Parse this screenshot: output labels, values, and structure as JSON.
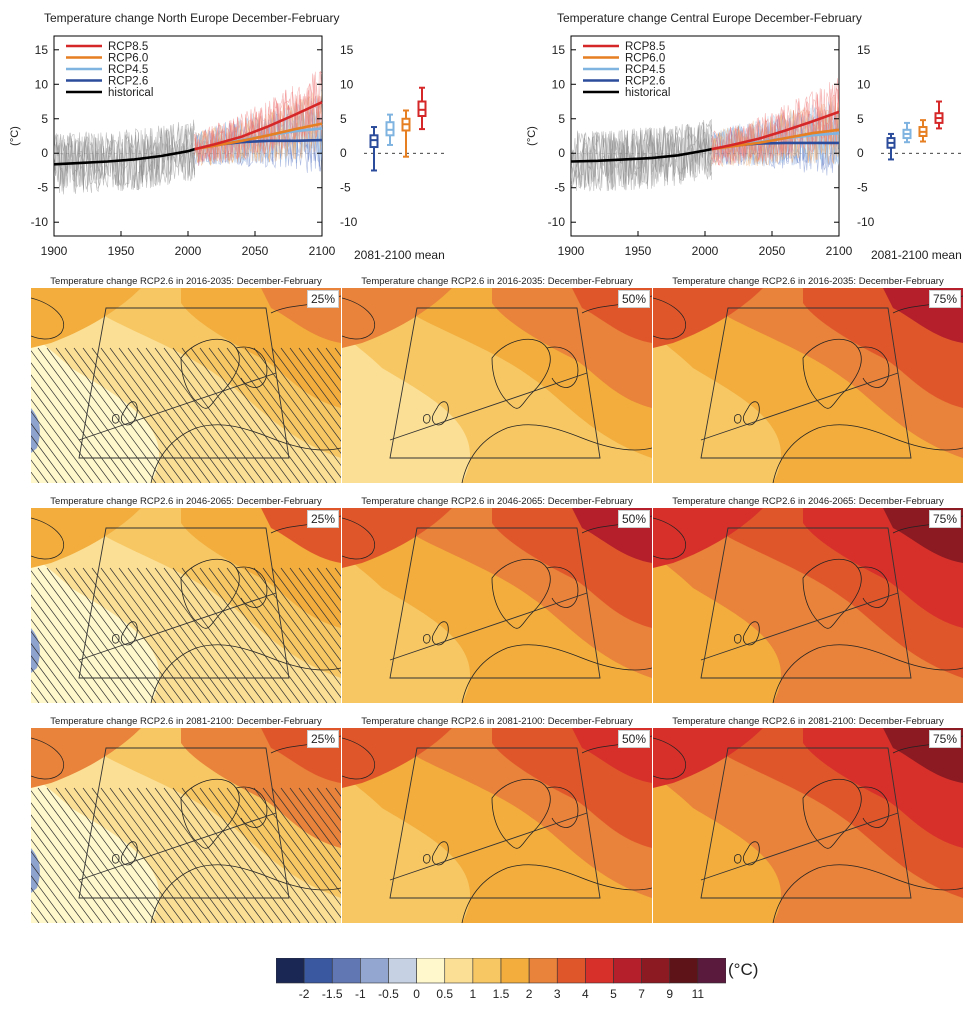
{
  "timeseries": [
    {
      "title": "Temperature change North Europe December-February",
      "ylabel": "(°C)",
      "xticks": [
        "1900",
        "1950",
        "2000",
        "2050",
        "2100"
      ],
      "yticks": [
        "15",
        "10",
        "5",
        "0",
        "-5",
        "-10"
      ],
      "box_label": "2081-2100 mean",
      "legend": [
        "RCP8.5",
        "RCP6.0",
        "RCP4.5",
        "RCP2.6",
        "historical"
      ]
    },
    {
      "title": "Temperature change Central Europe December-February",
      "ylabel": "(°C)",
      "xticks": [
        "1900",
        "1950",
        "2000",
        "2050",
        "2100"
      ],
      "yticks": [
        "15",
        "10",
        "5",
        "0",
        "-5",
        "-10"
      ],
      "box_label": "2081-2100 mean",
      "legend": [
        "RCP8.5",
        "RCP6.0",
        "RCP4.5",
        "RCP2.6",
        "historical"
      ]
    }
  ],
  "chart_data": [
    {
      "type": "line",
      "title": "Temperature change North Europe December-February",
      "xlabel": "",
      "ylabel": "(°C)",
      "xlim": [
        1900,
        2100
      ],
      "ylim": [
        -12,
        17
      ],
      "series": [
        {
          "name": "historical",
          "color": "#000000",
          "x": [
            1900,
            1920,
            1940,
            1960,
            1980,
            2000,
            2005
          ],
          "values": [
            -1.6,
            -1.4,
            -1.2,
            -0.9,
            -0.4,
            0.3,
            0.6
          ]
        },
        {
          "name": "RCP2.6",
          "color": "#2b4b9b",
          "x": [
            2005,
            2020,
            2040,
            2060,
            2080,
            2100
          ],
          "values": [
            0.6,
            1.2,
            1.6,
            1.8,
            1.8,
            1.9
          ]
        },
        {
          "name": "RCP4.5",
          "color": "#7fb3e0",
          "x": [
            2005,
            2020,
            2040,
            2060,
            2080,
            2100
          ],
          "values": [
            0.6,
            1.2,
            1.9,
            2.6,
            3.2,
            3.6
          ]
        },
        {
          "name": "RCP6.0",
          "color": "#e67e22",
          "x": [
            2005,
            2020,
            2040,
            2060,
            2080,
            2100
          ],
          "values": [
            0.6,
            1.1,
            1.8,
            2.6,
            3.5,
            4.3
          ]
        },
        {
          "name": "RCP8.5",
          "color": "#d62728",
          "x": [
            2005,
            2020,
            2040,
            2060,
            2080,
            2100
          ],
          "values": [
            0.6,
            1.3,
            2.4,
            3.9,
            5.6,
            7.4
          ]
        }
      ],
      "boxes_2081_2100": [
        {
          "name": "RCP2.6",
          "color": "#2b4b9b",
          "min": -2.5,
          "q1": 0.9,
          "median": 1.9,
          "q3": 2.6,
          "max": 3.8
        },
        {
          "name": "RCP4.5",
          "color": "#7fb3e0",
          "min": 1.2,
          "q1": 2.6,
          "median": 3.4,
          "q3": 4.5,
          "max": 5.6
        },
        {
          "name": "RCP6.0",
          "color": "#e67e22",
          "min": -0.5,
          "q1": 3.3,
          "median": 4.2,
          "q3": 5.0,
          "max": 6.2
        },
        {
          "name": "RCP8.5",
          "color": "#d62728",
          "min": 3.5,
          "q1": 5.4,
          "median": 6.3,
          "q3": 7.5,
          "max": 9.5
        }
      ]
    },
    {
      "type": "line",
      "title": "Temperature change Central Europe December-February",
      "xlabel": "",
      "ylabel": "(°C)",
      "xlim": [
        1900,
        2100
      ],
      "ylim": [
        -12,
        17
      ],
      "series": [
        {
          "name": "historical",
          "color": "#000000",
          "x": [
            1900,
            1920,
            1940,
            1960,
            1980,
            2000,
            2005
          ],
          "values": [
            -1.2,
            -1.1,
            -0.9,
            -0.7,
            -0.3,
            0.4,
            0.6
          ]
        },
        {
          "name": "RCP2.6",
          "color": "#2b4b9b",
          "x": [
            2005,
            2020,
            2040,
            2060,
            2080,
            2100
          ],
          "values": [
            0.6,
            1.1,
            1.4,
            1.5,
            1.5,
            1.5
          ]
        },
        {
          "name": "RCP4.5",
          "color": "#7fb3e0",
          "x": [
            2005,
            2020,
            2040,
            2060,
            2080,
            2100
          ],
          "values": [
            0.6,
            1.1,
            1.6,
            2.2,
            2.6,
            2.9
          ]
        },
        {
          "name": "RCP6.0",
          "color": "#e67e22",
          "x": [
            2005,
            2020,
            2040,
            2060,
            2080,
            2100
          ],
          "values": [
            0.6,
            1.0,
            1.5,
            2.2,
            2.9,
            3.4
          ]
        },
        {
          "name": "RCP8.5",
          "color": "#d62728",
          "x": [
            2005,
            2020,
            2040,
            2060,
            2080,
            2100
          ],
          "values": [
            0.6,
            1.2,
            2.1,
            3.3,
            4.6,
            6.0
          ]
        }
      ],
      "boxes_2081_2100": [
        {
          "name": "RCP2.6",
          "color": "#2b4b9b",
          "min": -0.9,
          "q1": 0.8,
          "median": 1.5,
          "q3": 2.2,
          "max": 2.8
        },
        {
          "name": "RCP4.5",
          "color": "#7fb3e0",
          "min": 1.6,
          "q1": 2.2,
          "median": 2.8,
          "q3": 3.4,
          "max": 4.4
        },
        {
          "name": "RCP6.0",
          "color": "#e67e22",
          "min": 1.7,
          "q1": 2.5,
          "median": 3.1,
          "q3": 3.8,
          "max": 4.8
        },
        {
          "name": "RCP8.5",
          "color": "#d62728",
          "min": 3.6,
          "q1": 4.4,
          "median": 5.1,
          "q3": 5.8,
          "max": 7.5
        }
      ]
    },
    {
      "type": "heatmap",
      "panels": [
        {
          "title": "Temperature change RCP2.6 in 2016-2035: December-February",
          "percentile": "25%"
        },
        {
          "title": "Temperature change RCP2.6 in 2016-2035: December-February",
          "percentile": "50%"
        },
        {
          "title": "Temperature change RCP2.6 in 2016-2035: December-February",
          "percentile": "75%"
        },
        {
          "title": "Temperature change RCP2.6 in 2046-2065: December-February",
          "percentile": "25%"
        },
        {
          "title": "Temperature change RCP2.6 in 2046-2065: December-February",
          "percentile": "50%"
        },
        {
          "title": "Temperature change RCP2.6 in 2046-2065: December-February",
          "percentile": "75%"
        },
        {
          "title": "Temperature change RCP2.6 in 2081-2100: December-February",
          "percentile": "25%"
        },
        {
          "title": "Temperature change RCP2.6 in 2081-2100: December-February",
          "percentile": "50%"
        },
        {
          "title": "Temperature change RCP2.6 in 2081-2100: December-February",
          "percentile": "75%"
        }
      ],
      "colorbar": {
        "unit": "(°C)",
        "labels": [
          "-2",
          "-1.5",
          "-1",
          "-0.5",
          "0",
          "0.5",
          "1",
          "1.5",
          "2",
          "3",
          "4",
          "5",
          "7",
          "9",
          "11"
        ],
        "colors": [
          "#1a2654",
          "#3a58a0",
          "#6177b4",
          "#93a6cf",
          "#c6d1e4",
          "#fff8cc",
          "#fbdf95",
          "#f7c763",
          "#f2ad3d",
          "#e9823a",
          "#e0562b",
          "#d7302a",
          "#b51f2b",
          "#8c1a22",
          "#5e1318",
          "#5a1a3d"
        ]
      }
    }
  ]
}
